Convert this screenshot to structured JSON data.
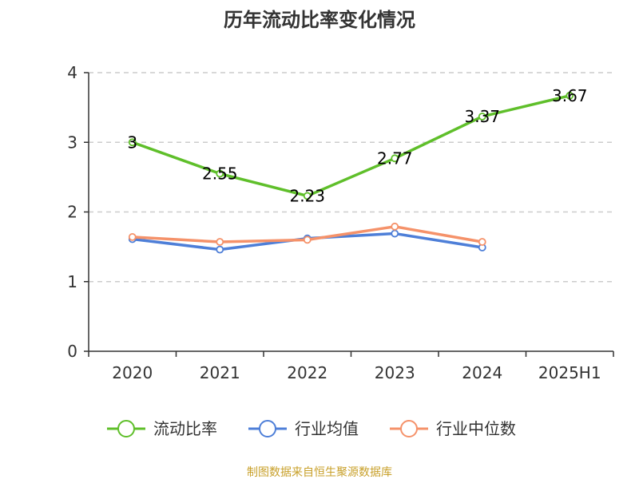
{
  "chart_data": {
    "type": "line",
    "title": "历年流动比率变化情况",
    "categories": [
      "2020",
      "2021",
      "2022",
      "2023",
      "2024",
      "2025H1"
    ],
    "y_ticks": [
      "0",
      "1",
      "2",
      "3",
      "4"
    ],
    "ylim": [
      0,
      4
    ],
    "grid": true,
    "legend_position": "bottom",
    "series": [
      {
        "name": "流动比率",
        "color": "#5fbf2a",
        "values": [
          3,
          2.55,
          2.23,
          2.77,
          3.37,
          3.67
        ],
        "labels": [
          "3",
          "2.55",
          "2.23",
          "2.77",
          "3.37",
          "3.67"
        ],
        "show_labels": true
      },
      {
        "name": "行业均值",
        "color": "#4e7fd8",
        "values": [
          1.61,
          1.46,
          1.62,
          1.69,
          1.49,
          null
        ],
        "show_labels": false
      },
      {
        "name": "行业中位数",
        "color": "#f5926a",
        "values": [
          1.64,
          1.57,
          1.6,
          1.79,
          1.57,
          null
        ],
        "show_labels": false
      }
    ]
  },
  "source": "制图数据来自恒生聚源数据库"
}
